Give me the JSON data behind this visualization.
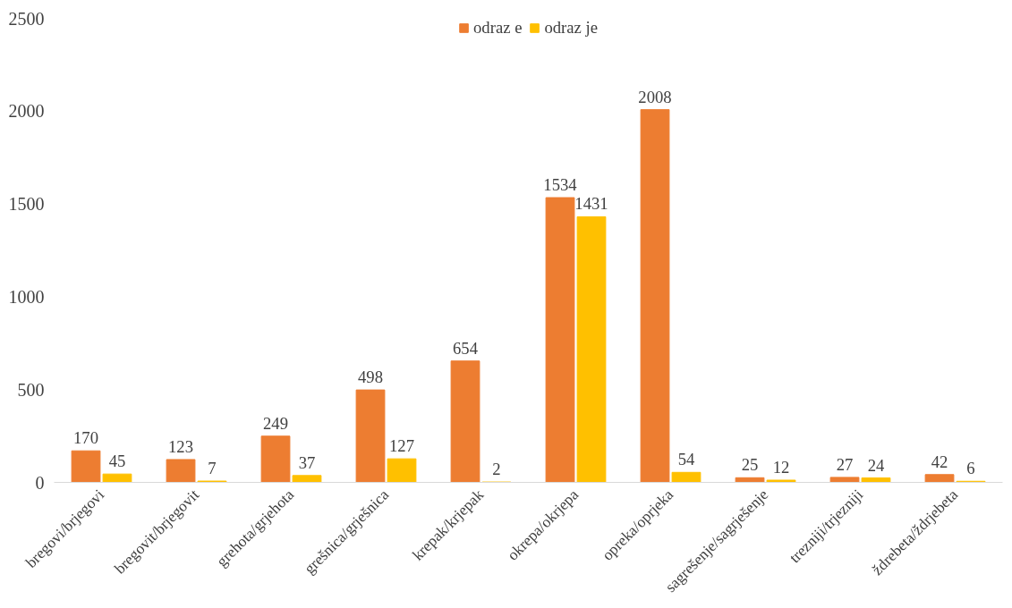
{
  "chart_data": {
    "type": "bar",
    "categories": [
      "bregovi/brjegovi",
      "bregovit/brjegovit",
      "grehota/grjehota",
      "grešnica/grješnica",
      "krepak/krjepak",
      "okrepa/okrjepa",
      "opreka/oprjeka",
      "sagrešenje/sagrješenje",
      "trezniji/trjezniji",
      "ždrebeta/ždrjebeta"
    ],
    "series": [
      {
        "name": "odraz e",
        "color": "#ed7d31",
        "values": [
          170,
          123,
          249,
          498,
          654,
          1534,
          2008,
          25,
          27,
          42
        ]
      },
      {
        "name": "odraz je",
        "color": "#ffc000",
        "values": [
          45,
          7,
          37,
          127,
          2,
          1431,
          54,
          12,
          24,
          6
        ]
      }
    ],
    "ylim": [
      0,
      2500
    ],
    "yticks": [
      0,
      500,
      1000,
      1500,
      2000,
      2500
    ],
    "grid": false,
    "legend": "top",
    "data_labels": true
  }
}
